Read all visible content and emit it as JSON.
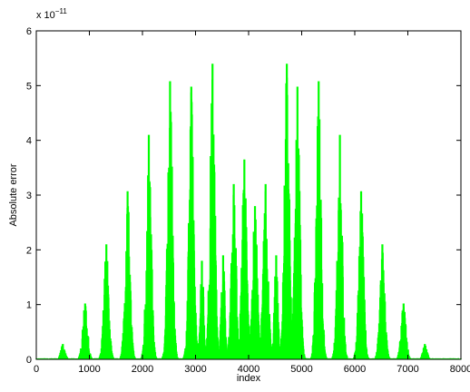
{
  "chart_data": {
    "type": "line",
    "title": "",
    "xlabel": "index",
    "ylabel": "Absolute error",
    "y_exponent_base": "x 10",
    "y_exponent_power": "−11",
    "xlim": [
      0,
      8000
    ],
    "ylim": [
      0,
      6
    ],
    "x_ticks": [
      0,
      1000,
      2000,
      3000,
      4000,
      5000,
      6000,
      7000,
      8000
    ],
    "y_ticks": [
      0,
      1,
      2,
      3,
      4,
      5,
      6
    ],
    "grid": false,
    "legend": "none",
    "series": [
      {
        "color": "#00ff00",
        "note_peaks_center_index": [
          500,
          920,
          1320,
          1720,
          2120,
          2520,
          2920,
          3120,
          3320,
          3520,
          3720,
          3920,
          4120,
          4320,
          4520,
          4720,
          4920,
          5320,
          5720,
          6120,
          6520,
          6920,
          7320
        ],
        "peak_values": [
          0.28,
          1.02,
          2.1,
          3.07,
          4.1,
          5.08,
          4.98,
          1.8,
          5.4,
          1.9,
          3.2,
          3.65,
          2.8,
          3.2,
          1.9,
          5.4,
          4.98,
          5.08,
          4.1,
          3.07,
          2.1,
          1.02,
          0.28
        ],
        "peak_half_widths": [
          80,
          90,
          90,
          90,
          90,
          90,
          90,
          70,
          90,
          70,
          90,
          90,
          90,
          90,
          70,
          90,
          90,
          90,
          90,
          90,
          90,
          90,
          80
        ]
      }
    ]
  }
}
